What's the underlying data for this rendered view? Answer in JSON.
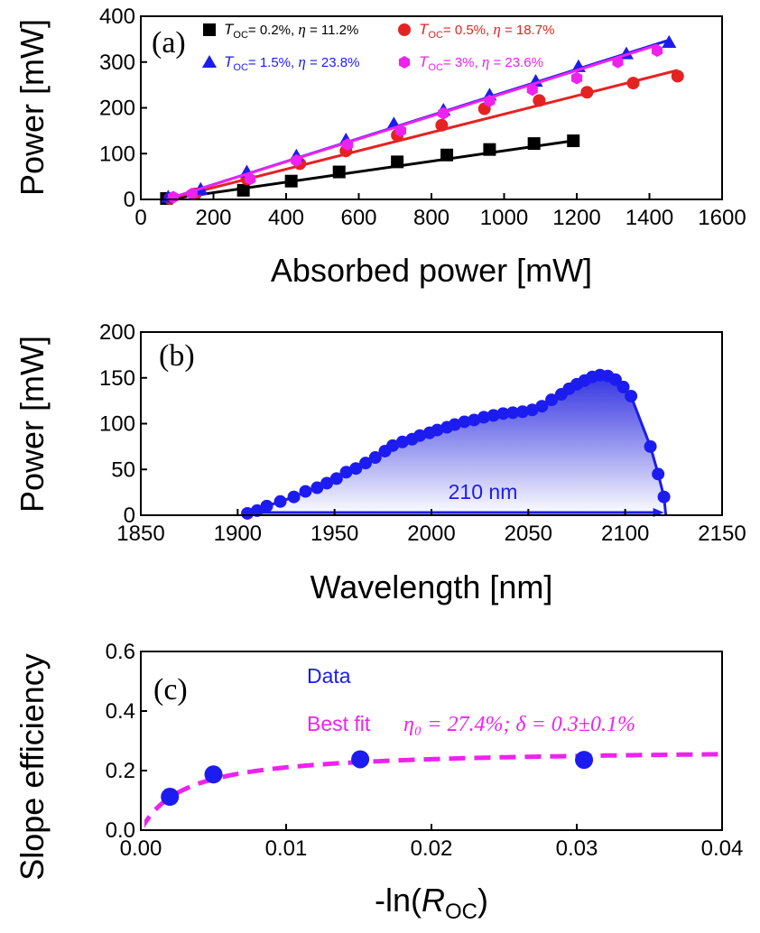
{
  "chart_data": [
    {
      "panel": "(a)",
      "type": "line",
      "xlabel": "Absorbed power [mW]",
      "ylabel": "Power [mW]",
      "xlim": [
        0,
        1700
      ],
      "ylim": [
        0,
        400
      ],
      "xticks": [
        "0",
        "200",
        "400",
        "600",
        "800",
        "1000",
        "1200",
        "1400",
        "1600"
      ],
      "yticks": [
        "0",
        "100",
        "200",
        "300",
        "400"
      ],
      "legend_position": "top",
      "series": [
        {
          "name": "T_OC= 0.2%, η = 11.2%",
          "legend_text": {
            "sym": "T",
            "sub": "OC",
            "rest": "= 0.2%, ",
            "eta": "η",
            "eta_rest": " = 11.2%"
          },
          "color": "#000000",
          "marker": "square",
          "x": [
            75,
            300,
            440,
            580,
            750,
            895,
            1020,
            1150,
            1265
          ],
          "y": [
            2,
            20,
            40,
            60,
            82,
            97,
            109,
            122,
            128
          ],
          "fit": {
            "x": [
              75,
              1265
            ],
            "y": [
              0,
              128
            ]
          }
        },
        {
          "name": "T_OC= 0.5%, η = 18.7%",
          "legend_text": {
            "sym": "T",
            "sub": "OC",
            "rest": "= 0.5%, ",
            "eta": "η",
            "eta_rest": " = 18.7%"
          },
          "color": "#e52222",
          "marker": "circle",
          "x": [
            85,
            160,
            310,
            465,
            600,
            750,
            880,
            1005,
            1165,
            1305,
            1440,
            1570
          ],
          "y": [
            2,
            12,
            45,
            78,
            106,
            140,
            162,
            198,
            216,
            234,
            254,
            269
          ],
          "fit": {
            "x": [
              75,
              1570
            ],
            "y": [
              0,
              282
            ]
          }
        },
        {
          "name": "T_OC= 1.5%, η = 23.8%",
          "legend_text": {
            "sym": "T",
            "sub": "OC",
            "rest": "= 1.5%, ",
            "eta": "η",
            "eta_rest": " = 23.8%"
          },
          "color": "#1c1cf0",
          "marker": "triangle",
          "x": [
            80,
            175,
            310,
            455,
            600,
            740,
            885,
            1020,
            1155,
            1280,
            1420,
            1545
          ],
          "y": [
            5,
            22,
            60,
            95,
            130,
            165,
            195,
            228,
            258,
            290,
            318,
            343
          ],
          "fit": {
            "x": [
              75,
              1545
            ],
            "y": [
              0,
              348
            ]
          }
        },
        {
          "name": "T_OC= 3%, η = 23.6%",
          "legend_text": {
            "sym": "T",
            "sub": "OC",
            "rest": "= 3%,  ",
            "eta": "η",
            "eta_rest": " = 23.6%"
          },
          "color": "#ee22ee",
          "marker": "hexagon",
          "x": [
            95,
            150,
            320,
            455,
            605,
            760,
            885,
            1020,
            1145,
            1275,
            1395,
            1510
          ],
          "y": [
            5,
            12,
            45,
            85,
            120,
            150,
            188,
            215,
            240,
            265,
            300,
            325
          ],
          "fit": {
            "x": [
              75,
              1510
            ],
            "y": [
              0,
              337
            ]
          }
        }
      ]
    },
    {
      "panel": "(b)",
      "type": "area",
      "xlabel": "Wavelength [nm]",
      "ylabel": "Power [mW]",
      "xlim": [
        1850,
        2150
      ],
      "ylim": [
        0,
        200
      ],
      "xticks": [
        "1850",
        "1900",
        "1950",
        "2000",
        "2050",
        "2100",
        "2150"
      ],
      "yticks": [
        "0",
        "50",
        "100",
        "150",
        "200"
      ],
      "annotation": "210 nm",
      "span": [
        1905,
        2120
      ],
      "series": [
        {
          "color": "#1c1cf0",
          "marker": "circle",
          "x": [
            1905,
            1910,
            1915,
            1922,
            1929,
            1935,
            1941,
            1946,
            1951,
            1956,
            1961,
            1966,
            1971,
            1976,
            1980,
            1985,
            1990,
            1994,
            1999,
            2003,
            2008,
            2012,
            2017,
            2022,
            2027,
            2032,
            2037,
            2042,
            2047,
            2052,
            2057,
            2062,
            2067,
            2071,
            2075,
            2079,
            2083,
            2087,
            2091,
            2095,
            2099,
            2103,
            2113,
            2117,
            2120,
            2121
          ],
          "y": [
            2,
            5,
            10,
            15,
            20,
            26,
            30,
            35,
            40,
            47,
            51,
            57,
            63,
            70,
            76,
            80,
            83,
            87,
            90,
            93,
            96,
            99,
            102,
            104,
            107,
            109,
            111,
            112,
            113,
            115,
            119,
            126,
            132,
            138,
            143,
            147,
            151,
            153,
            152,
            148,
            140,
            130,
            75,
            45,
            20,
            0
          ]
        }
      ]
    },
    {
      "panel": "(c)",
      "type": "scatter",
      "xlabel_prefix": "-ln(",
      "xlabel_var": "R",
      "xlabel_sub": "OC",
      "xlabel_suffix": ")",
      "ylabel": "Slope efficiency",
      "xlim": [
        0,
        0.04
      ],
      "ylim": [
        0,
        0.6
      ],
      "xticks": [
        "0.00",
        "0.01",
        "0.02",
        "0.03",
        "0.04"
      ],
      "yticks": [
        "0.0",
        "0.2",
        "0.4",
        "0.6"
      ],
      "data_label": "Data",
      "fit_label": "Best fit",
      "fit_formula": "η₀ = 27.4%; δ = 0.3±0.1%",
      "fit_params": {
        "eta0": 0.274,
        "delta": 0.003
      },
      "data": {
        "color": "#1c1cf0",
        "x": [
          0.002,
          0.005,
          0.0151,
          0.0305
        ],
        "y": [
          0.112,
          0.187,
          0.238,
          0.236
        ]
      },
      "fit_color": "#ee22ee"
    }
  ]
}
